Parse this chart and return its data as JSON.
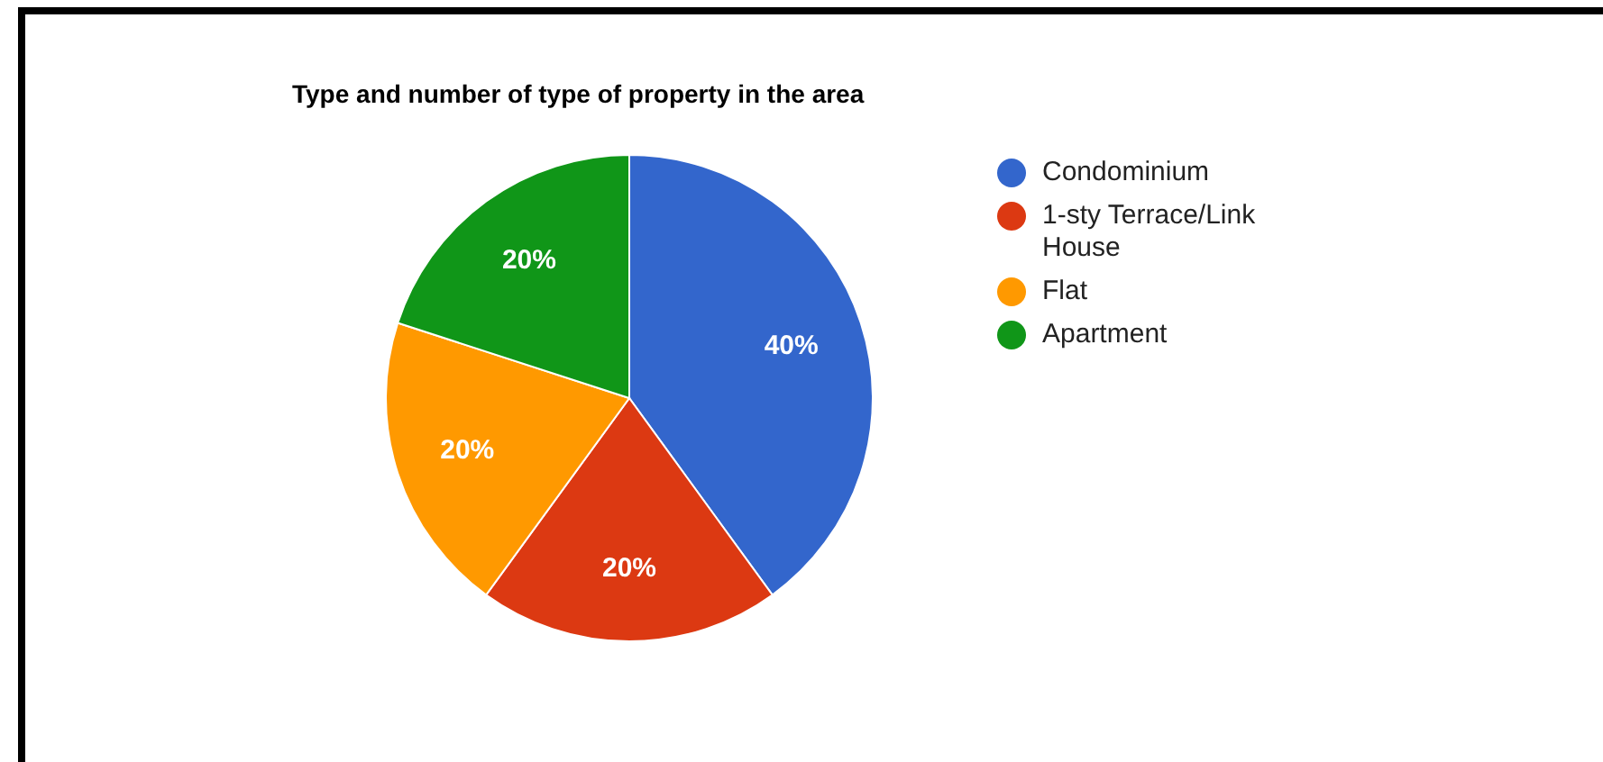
{
  "chart_data": {
    "type": "pie",
    "title": "Type and number of type of property in the area",
    "categories": [
      "Condominium",
      "1-sty Terrace/Link House",
      "Flat",
      "Apartment"
    ],
    "values": [
      40,
      20,
      20,
      20
    ],
    "colors": [
      "#3366cc",
      "#dc3912",
      "#ff9900",
      "#109618"
    ],
    "value_labels": [
      "40%",
      "20%",
      "20%",
      "20%"
    ],
    "legend": "top right"
  }
}
